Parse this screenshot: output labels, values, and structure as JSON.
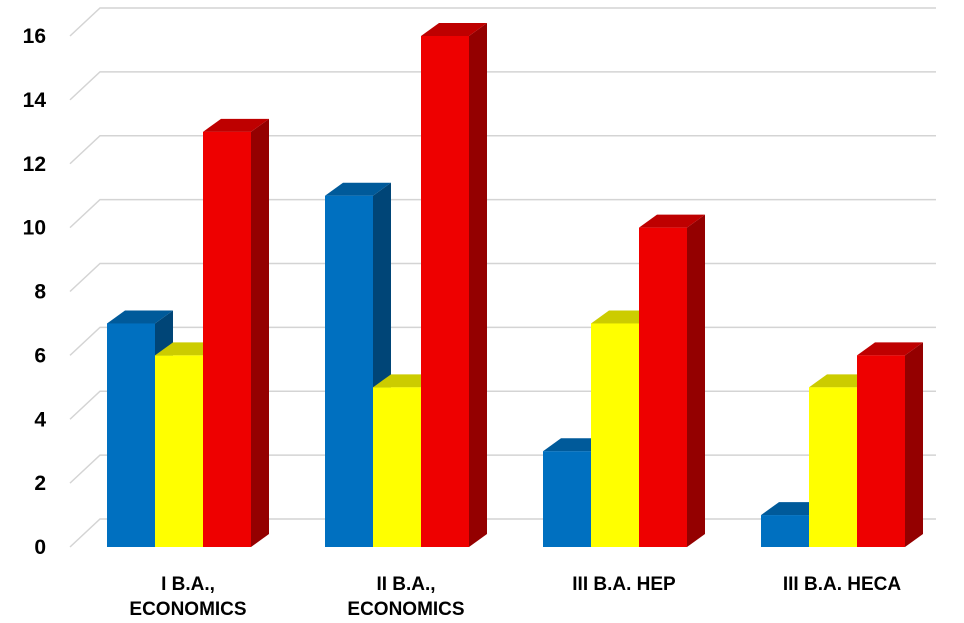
{
  "chart_data": {
    "type": "bar",
    "style": "3d-clustered-column",
    "categories": [
      [
        "I B.A.,",
        "ECONOMICS"
      ],
      [
        "II B.A.,",
        "ECONOMICS"
      ],
      [
        "III B.A. HEP"
      ],
      [
        "III B.A. HECA"
      ]
    ],
    "series": [
      {
        "values": [
          7,
          11,
          3,
          1
        ],
        "color": "#0070C0"
      },
      {
        "values": [
          6,
          5,
          7,
          5
        ],
        "color": "#FFFF00"
      },
      {
        "values": [
          13,
          16,
          10,
          6
        ],
        "color": "#EE0000"
      }
    ],
    "ylim": [
      0,
      16
    ],
    "yticks": [
      "0",
      "2",
      "4",
      "6",
      "8",
      "10",
      "12",
      "14",
      "16"
    ],
    "grid": true,
    "legend": "none",
    "title": "",
    "xlabel": "",
    "ylabel": ""
  }
}
